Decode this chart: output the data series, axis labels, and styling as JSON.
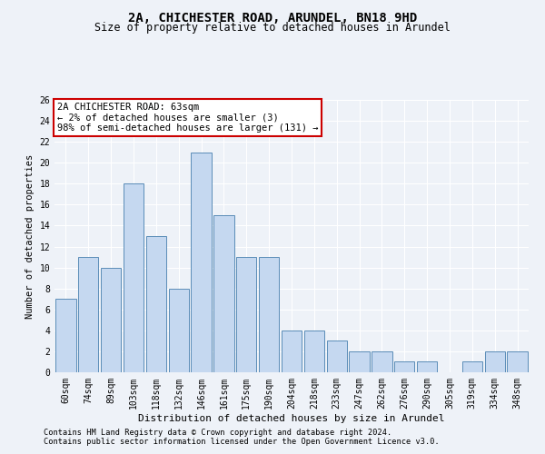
{
  "title1": "2A, CHICHESTER ROAD, ARUNDEL, BN18 9HD",
  "title2": "Size of property relative to detached houses in Arundel",
  "xlabel": "Distribution of detached houses by size in Arundel",
  "ylabel": "Number of detached properties",
  "categories": [
    "60sqm",
    "74sqm",
    "89sqm",
    "103sqm",
    "118sqm",
    "132sqm",
    "146sqm",
    "161sqm",
    "175sqm",
    "190sqm",
    "204sqm",
    "218sqm",
    "233sqm",
    "247sqm",
    "262sqm",
    "276sqm",
    "290sqm",
    "305sqm",
    "319sqm",
    "334sqm",
    "348sqm"
  ],
  "values": [
    7,
    11,
    10,
    18,
    13,
    8,
    21,
    15,
    11,
    11,
    4,
    4,
    3,
    2,
    2,
    1,
    1,
    0,
    1,
    2,
    2
  ],
  "bar_color": "#c5d8f0",
  "bar_edge_color": "#5b8db8",
  "annotation_text": "2A CHICHESTER ROAD: 63sqm\n← 2% of detached houses are smaller (3)\n98% of semi-detached houses are larger (131) →",
  "annotation_box_color": "#ffffff",
  "annotation_box_edge_color": "#cc0000",
  "ylim": [
    0,
    26
  ],
  "yticks": [
    0,
    2,
    4,
    6,
    8,
    10,
    12,
    14,
    16,
    18,
    20,
    22,
    24,
    26
  ],
  "background_color": "#eef2f8",
  "grid_color": "#ffffff",
  "footer1": "Contains HM Land Registry data © Crown copyright and database right 2024.",
  "footer2": "Contains public sector information licensed under the Open Government Licence v3.0.",
  "title1_fontsize": 10,
  "title2_fontsize": 8.5,
  "xlabel_fontsize": 8,
  "ylabel_fontsize": 7.5,
  "tick_fontsize": 7,
  "annotation_fontsize": 7.5,
  "footer_fontsize": 6.2
}
